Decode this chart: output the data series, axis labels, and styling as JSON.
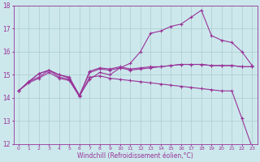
{
  "x": [
    0,
    1,
    2,
    3,
    4,
    5,
    6,
    7,
    8,
    9,
    10,
    11,
    12,
    13,
    14,
    15,
    16,
    17,
    18,
    19,
    20,
    21,
    22,
    23
  ],
  "line_peak": [
    14.3,
    14.7,
    14.9,
    15.2,
    14.9,
    14.8,
    14.1,
    14.8,
    15.1,
    15.0,
    15.3,
    15.5,
    16.0,
    16.8,
    16.9,
    17.1,
    17.2,
    17.5,
    17.8,
    16.7,
    16.5,
    16.4,
    16.0,
    15.4
  ],
  "line_drop": [
    14.3,
    14.65,
    14.85,
    15.1,
    14.85,
    14.75,
    14.05,
    14.9,
    14.95,
    14.85,
    14.8,
    14.75,
    14.7,
    14.65,
    14.6,
    14.55,
    14.5,
    14.45,
    14.4,
    14.35,
    14.3,
    14.3,
    13.1,
    11.85
  ],
  "line_flat1": [
    14.3,
    14.7,
    15.05,
    15.2,
    15.0,
    14.85,
    14.1,
    15.1,
    15.25,
    15.2,
    15.3,
    15.2,
    15.25,
    15.3,
    15.35,
    15.4,
    15.45,
    15.45,
    15.45,
    15.4,
    15.4,
    15.4,
    15.35,
    15.35
  ],
  "line_flat2": [
    14.3,
    14.7,
    15.05,
    15.2,
    15.0,
    14.9,
    14.1,
    15.15,
    15.3,
    15.25,
    15.35,
    15.25,
    15.3,
    15.35,
    15.35,
    15.4,
    15.45,
    15.45,
    15.45,
    15.4,
    15.4,
    15.4,
    15.35,
    15.35
  ],
  "color": "#993399",
  "bg_color": "#cce8ec",
  "grid_color": "#aacccc",
  "xlabel": "Windchill (Refroidissement éolien,°C)",
  "ylim": [
    12,
    18
  ],
  "xlim": [
    0,
    23
  ],
  "yticks": [
    12,
    13,
    14,
    15,
    16,
    17,
    18
  ],
  "xticks": [
    0,
    1,
    2,
    3,
    4,
    5,
    6,
    7,
    8,
    9,
    10,
    11,
    12,
    13,
    14,
    15,
    16,
    17,
    18,
    19,
    20,
    21,
    22,
    23
  ]
}
